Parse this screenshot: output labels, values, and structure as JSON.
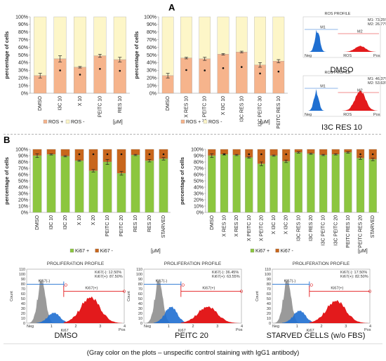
{
  "panel_a_label": "A",
  "panel_b_label": "B",
  "units_label": "[μM]",
  "caption": "(Gray color on the plots – unspecific control staining with IgG1 antibody)",
  "colors": {
    "ros_pos": "#f6b48c",
    "ros_neg": "#fdf6c8",
    "ki_pos": "#8cc63f",
    "ki_neg": "#c8661c",
    "hist_gray": "#9a9a9a",
    "hist_blue": "#1f6fd1",
    "hist_red": "#e31a1c",
    "gate_blue": "#1f6fd1",
    "gate_red": "#e31a1c"
  },
  "flow_small": [
    {
      "title": "ROS PROFILE",
      "label": "DMSO",
      "stats": [
        "M1: 73.25%",
        "M2: 26.77%"
      ],
      "gate_labels": [
        "M1",
        "M2"
      ],
      "x_label": "ROS",
      "x_ticks": [
        "Neg",
        "Pos"
      ],
      "neg_peak": 0.33,
      "pos_peak": 0.56,
      "neg_height": 1.0,
      "pos_height": 0.25,
      "gray": false
    },
    {
      "title": "ROS PROFILE",
      "label": "I3C RES 10",
      "stats": [
        "M1: 46.37%",
        "M2: 53.63%"
      ],
      "gate_labels": [
        "M1",
        "M2"
      ],
      "x_label": "ROS",
      "x_ticks": [
        "Neg",
        "Pos"
      ],
      "neg_peak": 0.3,
      "pos_peak": 0.58,
      "neg_height": 0.9,
      "pos_height": 0.85,
      "gray": false
    }
  ],
  "flow_large": [
    {
      "title": "PROLIFERATION PROFILE",
      "label": "DMSO",
      "stats": [
        "Ki67(-): 12.50%",
        "Ki67(+): 87.50%"
      ],
      "gate_neg": "Ki67(-)",
      "gate_pos": "Ki67(+)",
      "x_label": "Ki67",
      "y_label": "Count",
      "y_ticks": [
        "0",
        "10",
        "20",
        "30",
        "40",
        "50",
        "60",
        "70",
        "80",
        "90",
        "100",
        "110"
      ],
      "x_ticks": [
        "Neg",
        "1",
        "2",
        "3",
        "4",
        "Pos"
      ],
      "neg_height": 0.35,
      "pos_height": 0.52
    },
    {
      "title": "PROLIFERATION PROFILE",
      "label": "PEITC 20",
      "stats": [
        "Ki67(-): 36.45%",
        "Ki67(+): 63.55%"
      ],
      "gate_neg": "Ki67(-)",
      "gate_pos": "Ki67(+)",
      "x_label": "Ki67",
      "y_label": "Count",
      "y_ticks": [
        "0",
        "10",
        "20",
        "30",
        "40",
        "50",
        "60",
        "70",
        "80",
        "90",
        "100",
        "110"
      ],
      "x_ticks": [
        "Neg",
        "1",
        "2",
        "3",
        "4",
        "Pos"
      ],
      "neg_height": 0.55,
      "pos_height": 0.33
    },
    {
      "title": "PROLIFERATION PROFILE",
      "label": "STARVED CELLS (w/o FBS)",
      "stats": [
        "Ki67(-): 17.50%",
        "Ki67(+): 82.50%"
      ],
      "gate_neg": "Ki67(-)",
      "gate_pos": "Ki67(+)",
      "x_label": "Ki67",
      "y_label": "Count",
      "y_ticks": [
        "0",
        "10",
        "20",
        "30",
        "40",
        "50",
        "60",
        "70",
        "80",
        "90",
        "100",
        "110"
      ],
      "x_ticks": [
        "Neg",
        "1",
        "2",
        "3",
        "4",
        "Pos"
      ],
      "neg_height": 0.42,
      "pos_height": 0.45
    }
  ],
  "chart_data": [
    {
      "type": "bar",
      "stacked": true,
      "ylabel": "percentage of cells",
      "ylim": [
        0,
        100
      ],
      "yticks": [
        "0%",
        "10%",
        "20%",
        "30%",
        "40%",
        "50%",
        "60%",
        "70%",
        "80%",
        "90%",
        "100%"
      ],
      "categories": [
        "DMSO",
        "I3C 10",
        "X 10",
        "PEITC 10",
        "RES 10"
      ],
      "series": [
        {
          "name": "ROS +",
          "values": [
            23,
            45,
            34,
            49,
            44
          ],
          "errors": [
            3,
            4,
            1,
            2,
            3
          ]
        },
        {
          "name": "ROS -",
          "values": [
            77,
            55,
            66,
            51,
            56
          ]
        }
      ],
      "significant": [
        false,
        true,
        true,
        true,
        true
      ],
      "legend": "bottom"
    },
    {
      "type": "bar",
      "stacked": true,
      "ylabel": "percentage of cells",
      "ylim": [
        0,
        100
      ],
      "yticks": [
        "0%",
        "10%",
        "20%",
        "30%",
        "40%",
        "50%",
        "60%",
        "70%",
        "80%",
        "90%",
        "100%"
      ],
      "categories": [
        "DMSO",
        "X RES 10",
        "X PEITC 10",
        "X I3C 10",
        "I3C RES 10",
        "I3C PEITC 30",
        "PEITC RES 10"
      ],
      "series": [
        {
          "name": "ROS +",
          "values": [
            23,
            46,
            45,
            51,
            54,
            37,
            42
          ],
          "errors": [
            3,
            1,
            2,
            1,
            1,
            3,
            2
          ]
        },
        {
          "name": "ROS -",
          "values": [
            77,
            54,
            55,
            49,
            46,
            63,
            58
          ]
        }
      ],
      "significant": [
        false,
        true,
        true,
        true,
        true,
        true,
        true
      ],
      "legend": "bottom"
    },
    {
      "type": "bar",
      "stacked": true,
      "ylabel": "percentage of cells",
      "ylim": [
        0,
        100
      ],
      "yticks": [
        "0%",
        "10%",
        "20%",
        "30%",
        "40%",
        "50%",
        "60%",
        "70%",
        "80%",
        "90%",
        "100%"
      ],
      "categories": [
        "DMSO",
        "I3C 10",
        "I3C 20",
        "X 10",
        "X 20",
        "PEITC 10",
        "PEITC 20",
        "RES 10",
        "RES 20",
        "STARVED"
      ],
      "series": [
        {
          "name": "Ki67 +",
          "values": [
            90,
            92,
            89,
            82,
            66,
            80,
            62,
            91,
            82,
            85
          ],
          "errors": [
            3,
            1,
            1,
            1,
            2,
            4,
            3,
            1,
            2,
            2
          ]
        },
        {
          "name": "Ki67 -",
          "values": [
            10,
            8,
            11,
            18,
            34,
            20,
            38,
            9,
            18,
            15
          ]
        }
      ],
      "significant": [
        false,
        false,
        false,
        true,
        true,
        true,
        true,
        false,
        true,
        true
      ],
      "legend": "bottom"
    },
    {
      "type": "bar",
      "stacked": true,
      "ylabel": "percentage of cells",
      "ylim": [
        0,
        100
      ],
      "yticks": [
        "0%",
        "10%",
        "20%",
        "30%",
        "40%",
        "50%",
        "60%",
        "70%",
        "80%",
        "90%",
        "100%"
      ],
      "categories": [
        "DMSO",
        "X RES 10",
        "X RES 20",
        "X PEITC 10",
        "X PEITC 20",
        "X I3C 10",
        "X I3C 20",
        "I3C RES 10",
        "I3C RES 20",
        "I3C PEITC 10",
        "I3C PEITC 20",
        "PEITC RES 10",
        "PEITC RES 20",
        "STARVED"
      ],
      "series": [
        {
          "name": "Ki67 +",
          "values": [
            90,
            92,
            91,
            87,
            77,
            90,
            81,
            95,
            93,
            91,
            92,
            95,
            86,
            84
          ],
          "errors": [
            3,
            1,
            1,
            1,
            3,
            1,
            2,
            1,
            1,
            1,
            1,
            1,
            2,
            2
          ]
        },
        {
          "name": "Ki67 -",
          "values": [
            10,
            8,
            9,
            13,
            23,
            10,
            19,
            5,
            7,
            9,
            8,
            5,
            14,
            16
          ]
        }
      ],
      "significant": [
        false,
        true,
        false,
        true,
        true,
        false,
        true,
        false,
        false,
        false,
        false,
        false,
        true,
        true
      ],
      "legend": "bottom"
    }
  ]
}
